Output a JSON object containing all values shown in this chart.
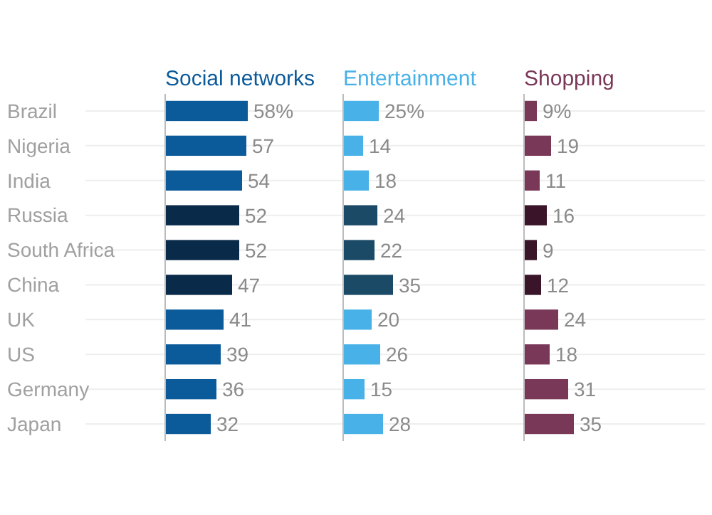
{
  "chart_data": [
    {
      "type": "bar",
      "orientation": "horizontal",
      "title": "Social networks",
      "tick_labels": "y",
      "grid": "y",
      "categories": [
        "Brazil",
        "Nigeria",
        "India",
        "Russia",
        "South Africa",
        "China",
        "UK",
        "US",
        "Germany",
        "Japan"
      ],
      "values": [
        58,
        57,
        54,
        52,
        52,
        47,
        41,
        39,
        36,
        32
      ],
      "value_labels": [
        "58%",
        "57",
        "54",
        "52",
        "52",
        "47",
        "41",
        "39",
        "36",
        "32"
      ],
      "colors": [
        "#0b5a9a",
        "#0b5a9a",
        "#0b5a9a",
        "#0a2a4a",
        "#0a2a4a",
        "#0a2a4a",
        "#0b5a9a",
        "#0b5a9a",
        "#0b5a9a",
        "#0b5a9a"
      ]
    },
    {
      "type": "bar",
      "orientation": "horizontal",
      "title": "Entertainment",
      "tick_labels": false,
      "grid": "y",
      "categories": [
        "Brazil",
        "Nigeria",
        "India",
        "Russia",
        "South Africa",
        "China",
        "UK",
        "US",
        "Germany",
        "Japan"
      ],
      "values": [
        25,
        14,
        18,
        24,
        22,
        35,
        20,
        26,
        15,
        28
      ],
      "value_labels": [
        "25%",
        "14",
        "18",
        "24",
        "22",
        "35",
        "20",
        "26",
        "15",
        "28"
      ],
      "colors": [
        "#48b2e8",
        "#48b2e8",
        "#48b2e8",
        "#1b4a66",
        "#1b4a66",
        "#1b4a66",
        "#48b2e8",
        "#48b2e8",
        "#48b2e8",
        "#48b2e8"
      ]
    },
    {
      "type": "bar",
      "orientation": "horizontal",
      "title": "Shopping",
      "tick_labels": false,
      "grid": "y",
      "categories": [
        "Brazil",
        "Nigeria",
        "India",
        "Russia",
        "South Africa",
        "China",
        "UK",
        "US",
        "Germany",
        "Japan"
      ],
      "values": [
        9,
        19,
        11,
        16,
        9,
        12,
        24,
        18,
        31,
        35
      ],
      "value_labels": [
        "9%",
        "19",
        "11",
        "16",
        "9",
        "12",
        "24",
        "18",
        "31",
        "35"
      ],
      "colors": [
        "#7a3858",
        "#7a3858",
        "#7a3858",
        "#3a1428",
        "#3a1428",
        "#3a1428",
        "#7a3858",
        "#7a3858",
        "#7a3858",
        "#7a3858"
      ]
    }
  ]
}
